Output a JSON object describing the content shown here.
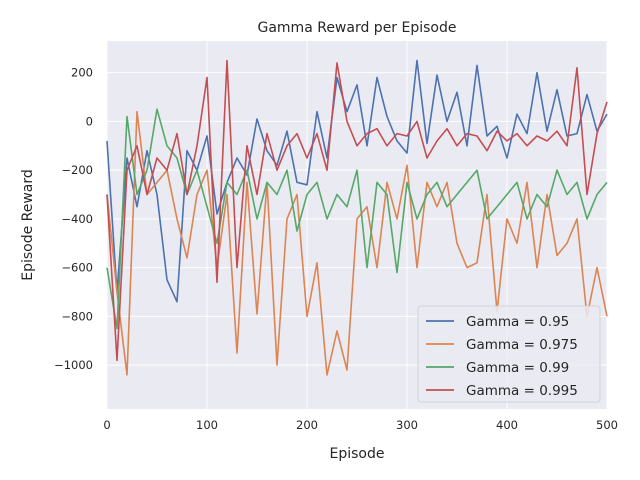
{
  "chart_data": {
    "type": "line",
    "title": "Gamma Reward per Episode",
    "xlabel": "Episode",
    "ylabel": "Episode Reward",
    "xlim": [
      0,
      500
    ],
    "ylim": [
      -1180,
      330
    ],
    "xticks": [
      0,
      100,
      200,
      300,
      400,
      500
    ],
    "xtick_labels": [
      "0",
      "100",
      "200",
      "300",
      "400",
      "500"
    ],
    "yticks": [
      200,
      0,
      -200,
      -400,
      -600,
      -800,
      -1000
    ],
    "ytick_labels": [
      "200",
      "0",
      "−200",
      "−400",
      "−600",
      "−800",
      "−1000"
    ],
    "grid": true,
    "legend_position": "lower-right",
    "series": [
      {
        "name": "Gamma = 0.95",
        "color": "#4c72b0",
        "x": [
          0,
          10,
          20,
          30,
          40,
          50,
          60,
          70,
          80,
          90,
          100,
          110,
          120,
          130,
          140,
          150,
          160,
          170,
          180,
          190,
          200,
          210,
          220,
          230,
          240,
          250,
          260,
          270,
          280,
          290,
          300,
          310,
          320,
          330,
          340,
          350,
          360,
          370,
          380,
          390,
          400,
          410,
          420,
          430,
          440,
          450,
          460,
          470,
          480,
          490,
          500
        ],
        "values": [
          -80,
          -700,
          -150,
          -350,
          -120,
          -300,
          -650,
          -740,
          -120,
          -200,
          -60,
          -380,
          -250,
          -150,
          -220,
          10,
          -120,
          -180,
          -40,
          -250,
          -260,
          40,
          -150,
          180,
          40,
          150,
          -100,
          180,
          20,
          -80,
          -130,
          250,
          -90,
          190,
          0,
          120,
          -100,
          230,
          -60,
          -20,
          -150,
          30,
          -50,
          200,
          -40,
          130,
          -60,
          -50,
          110,
          -40,
          30
        ]
      },
      {
        "name": "Gamma = 0.975",
        "color": "#dd8452",
        "x": [
          0,
          10,
          20,
          30,
          40,
          50,
          60,
          70,
          80,
          90,
          100,
          110,
          120,
          130,
          140,
          150,
          160,
          170,
          180,
          190,
          200,
          210,
          220,
          230,
          240,
          250,
          260,
          270,
          280,
          290,
          300,
          310,
          320,
          330,
          340,
          350,
          360,
          370,
          380,
          390,
          400,
          410,
          420,
          430,
          440,
          450,
          460,
          470,
          480,
          490,
          500
        ],
        "values": [
          -300,
          -700,
          -1040,
          40,
          -300,
          -250,
          -200,
          -400,
          -560,
          -300,
          -200,
          -600,
          -300,
          -950,
          -250,
          -790,
          -250,
          -1000,
          -400,
          -300,
          -800,
          -580,
          -1040,
          -860,
          -1020,
          -400,
          -350,
          -600,
          -250,
          -400,
          -180,
          -600,
          -250,
          -350,
          -250,
          -500,
          -600,
          -580,
          -300,
          -780,
          -400,
          -500,
          -250,
          -600,
          -300,
          -550,
          -500,
          -400,
          -800,
          -600,
          -800
        ]
      },
      {
        "name": "Gamma = 0.99",
        "color": "#55a868",
        "x": [
          0,
          10,
          20,
          30,
          40,
          50,
          60,
          70,
          80,
          90,
          100,
          110,
          120,
          130,
          140,
          150,
          160,
          170,
          180,
          190,
          200,
          210,
          220,
          230,
          240,
          250,
          260,
          270,
          280,
          290,
          300,
          310,
          320,
          330,
          340,
          350,
          360,
          370,
          380,
          390,
          400,
          410,
          420,
          430,
          440,
          450,
          460,
          470,
          480,
          490,
          500
        ],
        "values": [
          -600,
          -850,
          20,
          -300,
          -200,
          50,
          -100,
          -150,
          -300,
          -200,
          -350,
          -500,
          -250,
          -300,
          -200,
          -400,
          -250,
          -300,
          -200,
          -450,
          -300,
          -250,
          -400,
          -300,
          -350,
          -200,
          -600,
          -250,
          -300,
          -620,
          -250,
          -400,
          -300,
          -250,
          -350,
          -300,
          -250,
          -200,
          -400,
          -350,
          -300,
          -250,
          -400,
          -300,
          -350,
          -200,
          -300,
          -250,
          -400,
          -300,
          -250
        ]
      },
      {
        "name": "Gamma = 0.995",
        "color": "#c44e52",
        "x": [
          0,
          10,
          20,
          30,
          40,
          50,
          60,
          70,
          80,
          90,
          100,
          110,
          120,
          130,
          140,
          150,
          160,
          170,
          180,
          190,
          200,
          210,
          220,
          230,
          240,
          250,
          260,
          270,
          280,
          290,
          300,
          310,
          320,
          330,
          340,
          350,
          360,
          370,
          380,
          390,
          400,
          410,
          420,
          430,
          440,
          450,
          460,
          470,
          480,
          490,
          500
        ],
        "values": [
          -300,
          -980,
          -200,
          -100,
          -300,
          -150,
          -200,
          -50,
          -300,
          -100,
          180,
          -660,
          250,
          -600,
          -100,
          -300,
          -50,
          -200,
          -100,
          -50,
          -150,
          -50,
          -200,
          240,
          0,
          -100,
          -50,
          -30,
          -100,
          -50,
          -60,
          0,
          -150,
          -80,
          -30,
          -100,
          -50,
          -60,
          -120,
          -40,
          -80,
          -50,
          -100,
          -60,
          -80,
          -40,
          -100,
          220,
          -300,
          -50,
          80
        ]
      }
    ]
  }
}
